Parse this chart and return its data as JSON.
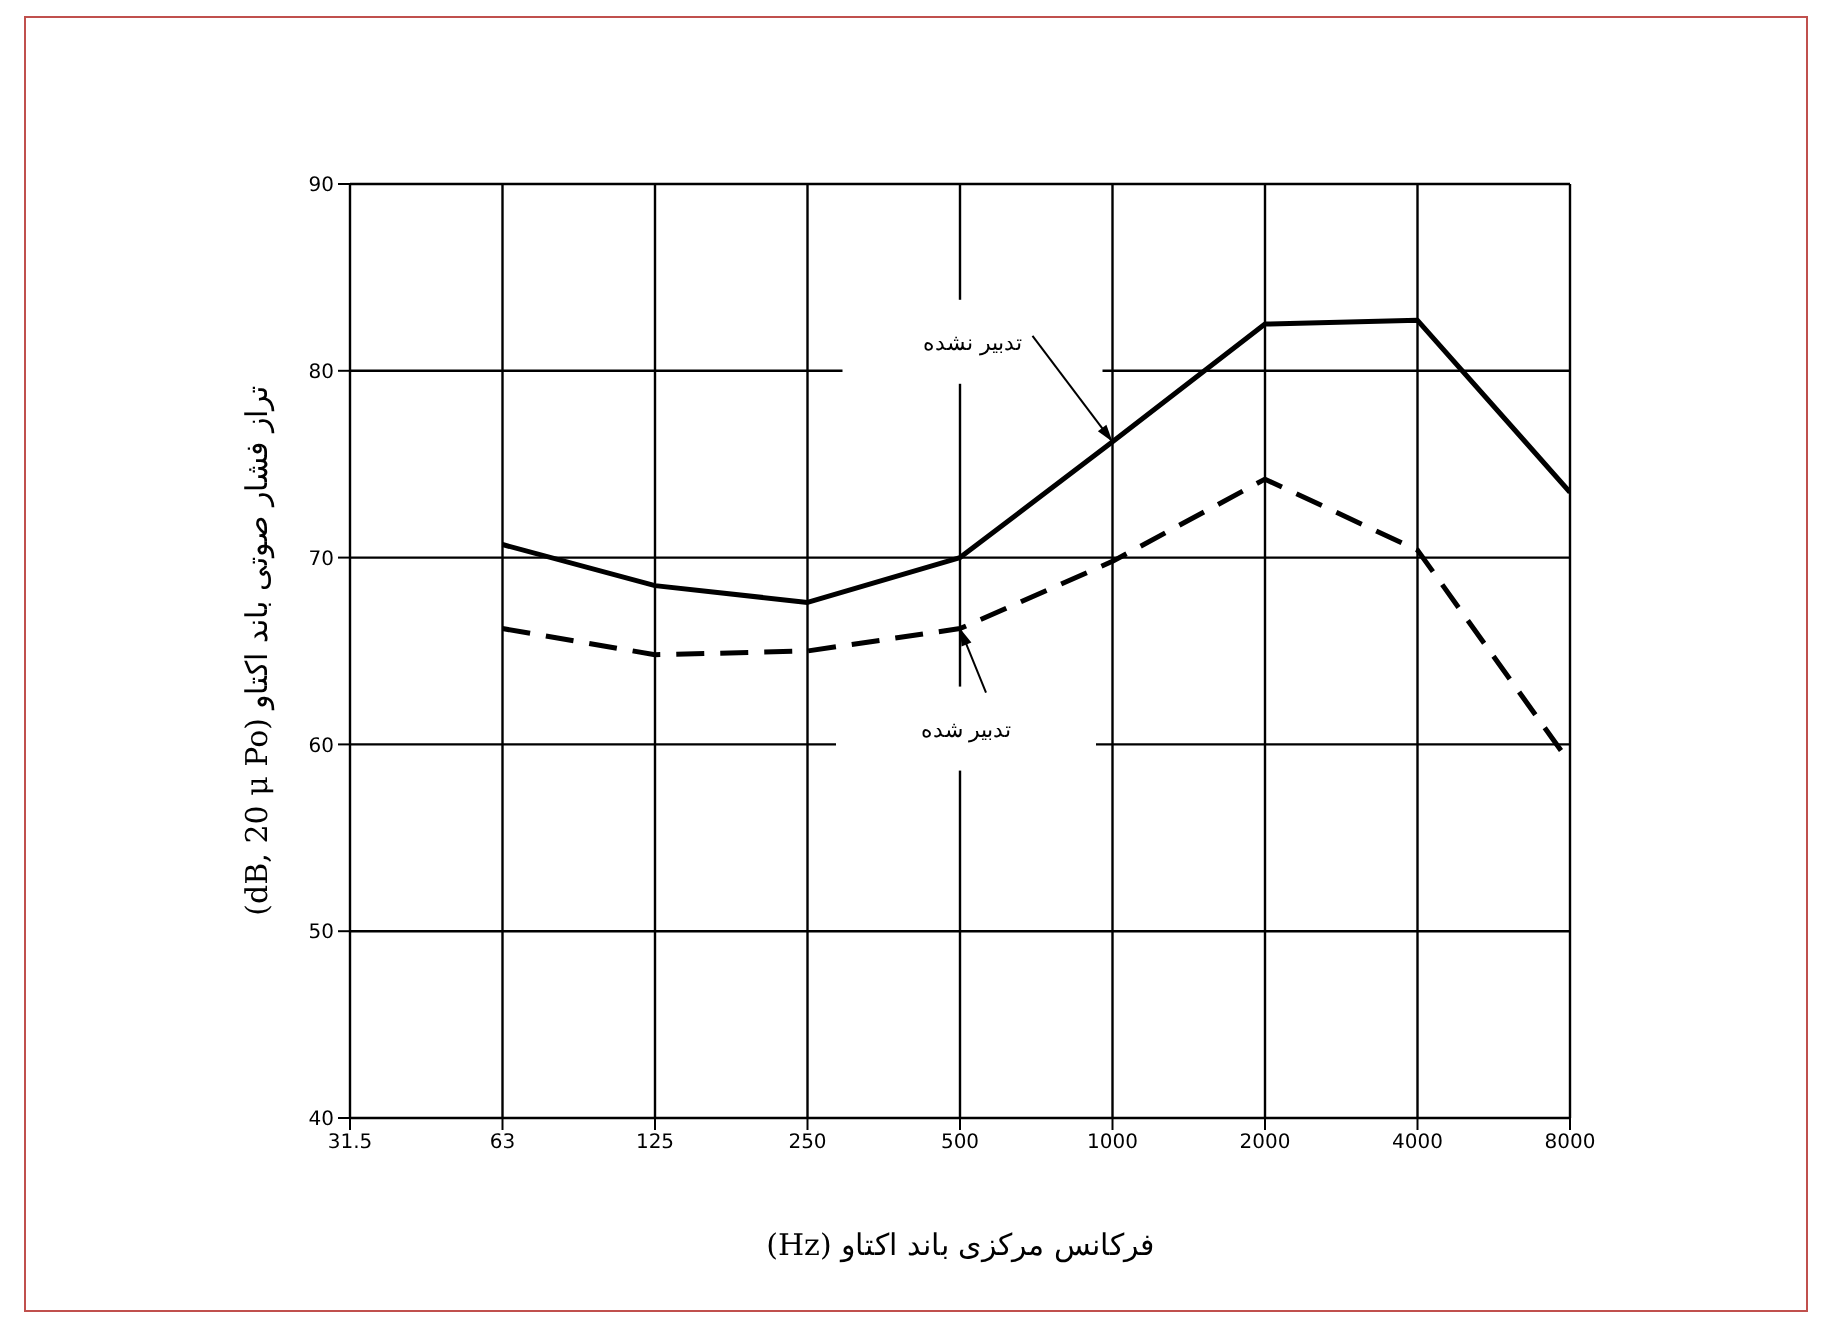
{
  "chart_data": {
    "type": "line",
    "xlabel": "فرکانس مرکزی باند اکتاو (Hz)",
    "ylabel": "تراز فشار صوتی باند اکتاو (dB, 20 μ Po)",
    "categories": [
      "31.5",
      "63",
      "125",
      "250",
      "500",
      "1000",
      "2000",
      "4000",
      "8000"
    ],
    "series": [
      {
        "color": "#000000",
        "line_style": "solid",
        "values": [
          null,
          70.7,
          68.5,
          67.6,
          70,
          76.2,
          82.5,
          82.7,
          73.5
        ]
      },
      {
        "color": "#000000",
        "line_style": "dashed",
        "values": [
          null,
          66.2,
          64.8,
          65,
          66.2,
          69.8,
          74.2,
          70.4,
          59
        ]
      }
    ],
    "ylim": [
      40,
      90
    ],
    "yticks": [
      40,
      50,
      60,
      70,
      80,
      90
    ],
    "annotations": [
      {
        "text": "تدبیر نشده",
        "x": "1000",
        "y": 76.2
      },
      {
        "text": "تدبیر شده",
        "x": "500",
        "y": 66.2
      }
    ],
    "grid": true,
    "marker": "none"
  }
}
